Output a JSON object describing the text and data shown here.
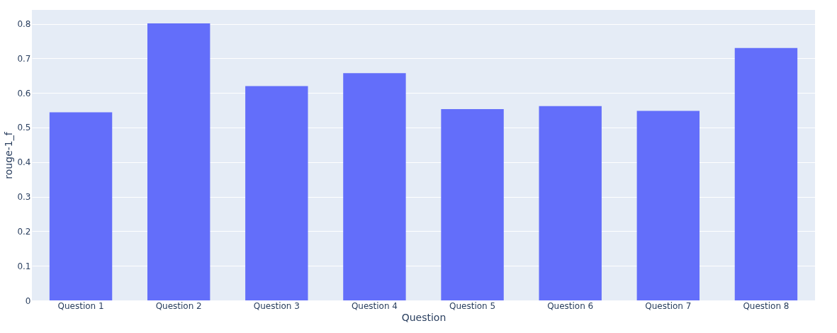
{
  "chart_data": {
    "type": "bar",
    "xlabel": "Question",
    "ylabel": "rouge-1_f",
    "categories": [
      "Question 1",
      "Question 2",
      "Question 3",
      "Question 4",
      "Question 5",
      "Question 6",
      "Question 7",
      "Question 8"
    ],
    "values": [
      0.544,
      0.801,
      0.62,
      0.657,
      0.553,
      0.562,
      0.548,
      0.73
    ],
    "color": "#636efa",
    "ylim": [
      0,
      0.84
    ],
    "yticks": [
      0,
      0.1,
      0.2,
      0.3,
      0.4,
      0.5,
      0.6,
      0.7,
      0.8
    ],
    "grid": "y"
  }
}
